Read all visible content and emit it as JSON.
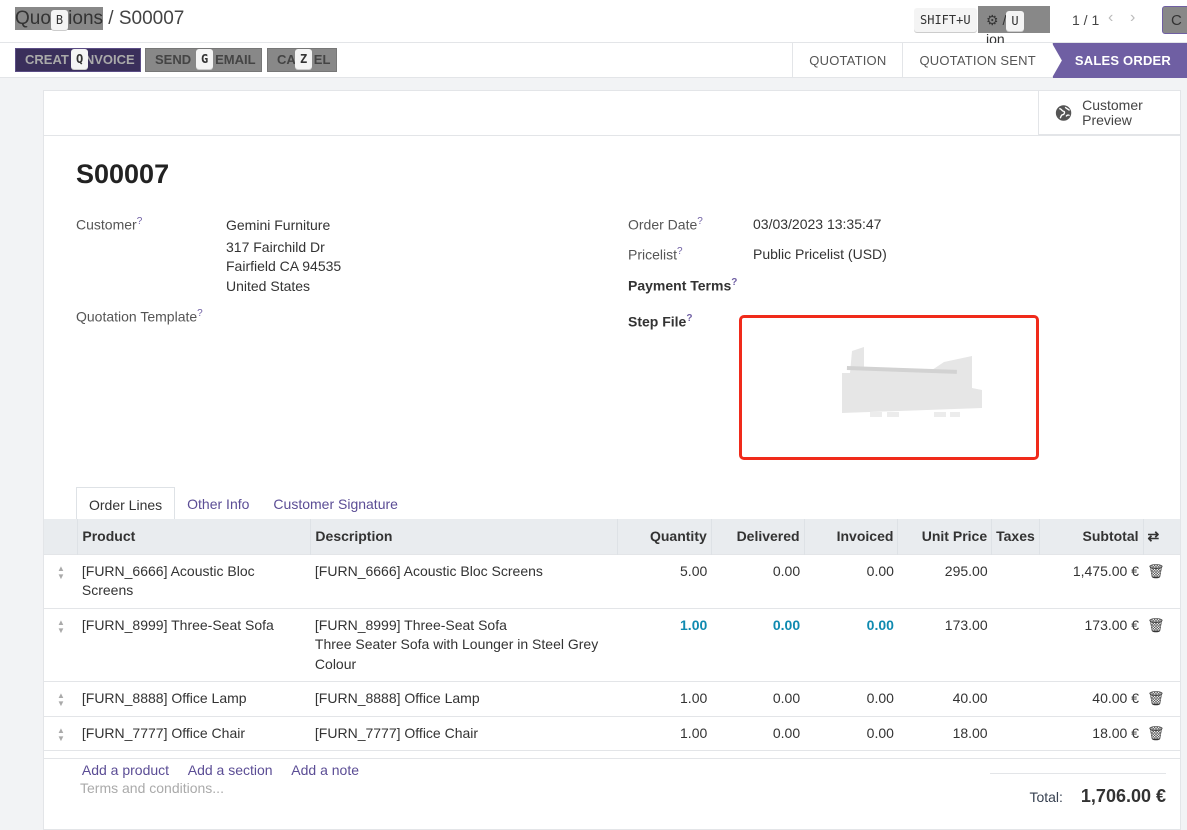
{
  "breadcrumb": {
    "parent": "Quotations",
    "parent_visible_a": "Quo",
    "parent_visible_b": "ions",
    "parent_key": "B",
    "current": "S00007"
  },
  "toolbar": {
    "shortcut_hint": "SHIFT+U",
    "action_a": "⚙ /",
    "action_b": "ion",
    "action_key": "U",
    "pager": "1 / 1",
    "create_partial": "C"
  },
  "buttons": [
    {
      "a": "CREAT",
      "b": "NVOICE",
      "key": "Q"
    },
    {
      "a": "SEND",
      "b": "EMAIL",
      "key": "G"
    },
    {
      "a": "CA",
      "b": "EL",
      "key": "Z"
    }
  ],
  "status": [
    "QUOTATION",
    "QUOTATION SENT",
    "SALES ORDER"
  ],
  "customer_preview": "Customer Preview",
  "record": {
    "name": "S00007",
    "customer_label": "Customer",
    "customer": "Gemini Furniture",
    "address": [
      "317 Fairchild Dr",
      "Fairfield CA 94535",
      "United States"
    ],
    "template_label": "Quotation Template",
    "order_date_label": "Order Date",
    "order_date": "03/03/2023 13:35:47",
    "pricelist_label": "Pricelist",
    "pricelist": "Public Pricelist (USD)",
    "payment_terms_label": "Payment Terms",
    "step_file_label": "Step File",
    "help": "?"
  },
  "tabs": [
    "Order Lines",
    "Other Info",
    "Customer Signature"
  ],
  "table": {
    "headers": [
      "Product",
      "Description",
      "Quantity",
      "Delivered",
      "Invoiced",
      "Unit Price",
      "Taxes",
      "Subtotal"
    ],
    "rows": [
      {
        "product": "[FURN_6666] Acoustic Bloc Screens",
        "desc": [
          "[FURN_6666] Acoustic Bloc Screens"
        ],
        "qty": "5.00",
        "delivered": "0.00",
        "invoiced": "0.00",
        "price": "295.00",
        "taxes": "",
        "subtotal": "1,475.00 €",
        "highlight": false
      },
      {
        "product": "[FURN_8999] Three-Seat Sofa",
        "desc": [
          "[FURN_8999] Three-Seat Sofa",
          "Three Seater Sofa with Lounger in Steel Grey",
          "Colour"
        ],
        "qty": "1.00",
        "delivered": "0.00",
        "invoiced": "0.00",
        "price": "173.00",
        "taxes": "",
        "subtotal": "173.00 €",
        "highlight": true
      },
      {
        "product": "[FURN_8888] Office Lamp",
        "desc": [
          "[FURN_8888] Office Lamp"
        ],
        "qty": "1.00",
        "delivered": "0.00",
        "invoiced": "0.00",
        "price": "40.00",
        "taxes": "",
        "subtotal": "40.00 €",
        "highlight": false
      },
      {
        "product": "[FURN_7777] Office Chair",
        "desc": [
          "[FURN_7777] Office Chair"
        ],
        "qty": "1.00",
        "delivered": "0.00",
        "invoiced": "0.00",
        "price": "18.00",
        "taxes": "",
        "subtotal": "18.00 €",
        "highlight": false
      }
    ],
    "add": [
      "Add a product",
      "Add a section",
      "Add a note"
    ]
  },
  "terms_placeholder": "Terms and conditions...",
  "total_label": "Total:",
  "total": "1,706.00 €"
}
